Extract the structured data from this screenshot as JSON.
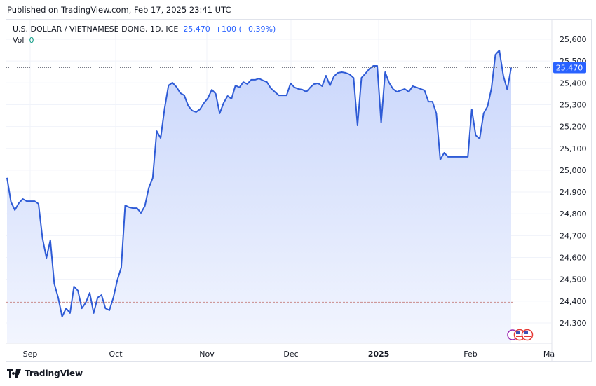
{
  "published": "Published on TradingView.com, Feb 17, 2025 23:41 UTC",
  "legend": {
    "symbol": "U.S. DOLLAR / VIETNAMESE DONG, 1D, ICE",
    "price": "25,470",
    "change": "+100 (+0.39%)",
    "vol_label": "Vol",
    "vol_value": "0"
  },
  "footer": {
    "brand": "TradingView"
  },
  "chart_data": {
    "type": "area",
    "title": "U.S. DOLLAR / VIETNAMESE DONG, 1D, ICE",
    "x_ticks": [
      "Sep",
      "Oct",
      "Nov",
      "Dec",
      "2025",
      "Feb",
      "Ma"
    ],
    "y_ticks": [
      "25,600",
      "25,500",
      "25,400",
      "25,300",
      "25,200",
      "25,100",
      "25,000",
      "24,900",
      "24,800",
      "24,700",
      "24,600",
      "24,500",
      "24,400",
      "24,300"
    ],
    "ylim": [
      24230,
      25650
    ],
    "grid": true,
    "last_price_label": "25,470",
    "last_price": 25470,
    "reference_line": 24395,
    "colors": {
      "line": "#2e5bd6",
      "fill_top": "#c9d6fb",
      "fill_bottom": "#f2f5fe",
      "last_price": "#2962ff",
      "reference": "#c98c8c"
    },
    "values": [
      24965,
      24855,
      24817,
      24849,
      24868,
      24858,
      24858,
      24858,
      24846,
      24688,
      24598,
      24679,
      24480,
      24416,
      24329,
      24367,
      24345,
      24467,
      24448,
      24367,
      24393,
      24438,
      24345,
      24416,
      24428,
      24367,
      24358,
      24416,
      24496,
      24554,
      24839,
      24830,
      24826,
      24826,
      24804,
      24836,
      24919,
      24964,
      25179,
      25147,
      25282,
      25388,
      25401,
      25382,
      25353,
      25343,
      25295,
      25273,
      25266,
      25279,
      25308,
      25330,
      25369,
      25350,
      25260,
      25308,
      25340,
      25327,
      25388,
      25379,
      25404,
      25395,
      25414,
      25414,
      25420,
      25411,
      25404,
      25375,
      25359,
      25343,
      25343,
      25343,
      25398,
      25379,
      25372,
      25369,
      25359,
      25379,
      25395,
      25398,
      25385,
      25433,
      25388,
      25430,
      25446,
      25449,
      25446,
      25439,
      25423,
      25205,
      25423,
      25443,
      25465,
      25478,
      25478,
      25218,
      25449,
      25401,
      25372,
      25359,
      25366,
      25372,
      25359,
      25385,
      25379,
      25372,
      25366,
      25314,
      25314,
      25260,
      25048,
      25080,
      25061,
      25061,
      25061,
      25061,
      25061,
      25061,
      25279,
      25160,
      25144,
      25260,
      25292,
      25375,
      25529,
      25549,
      25433,
      25369,
      25470
    ]
  }
}
